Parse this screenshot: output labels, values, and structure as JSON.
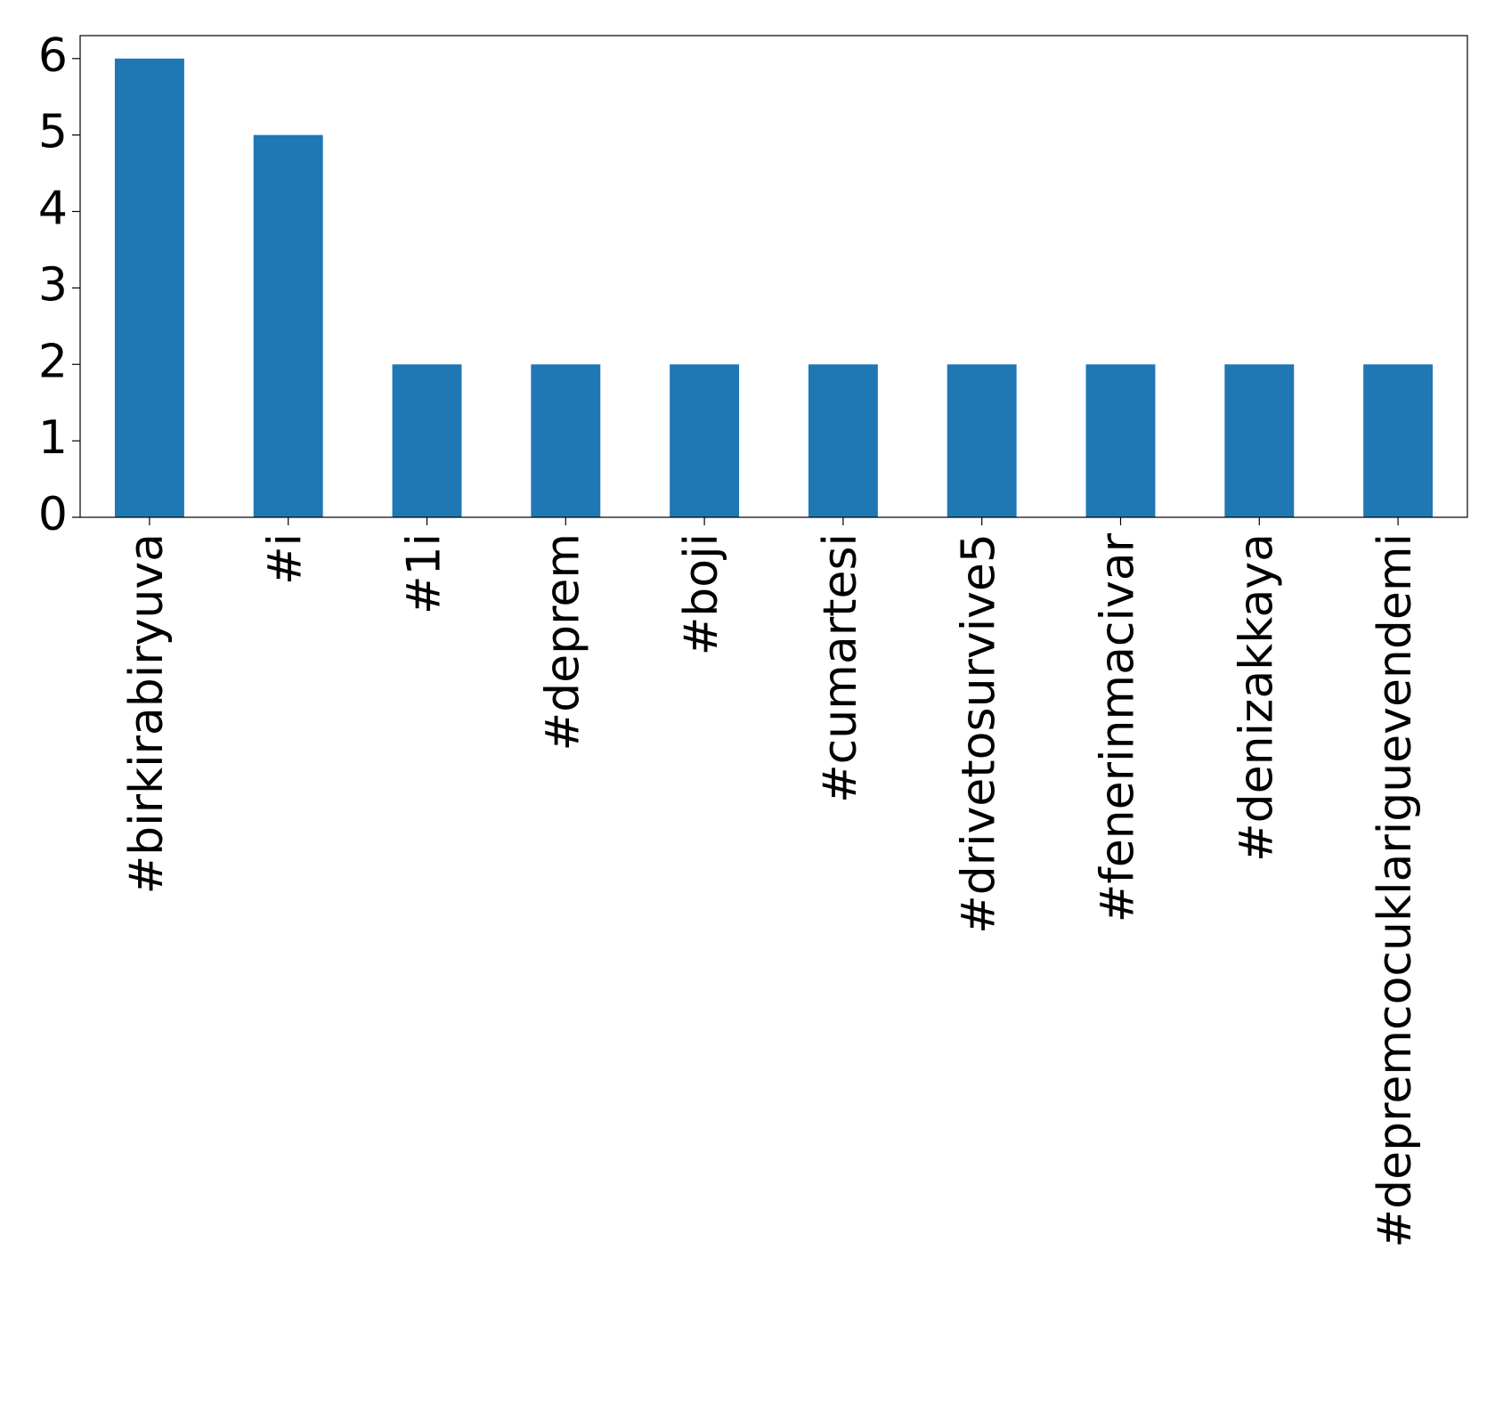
{
  "chart_data": {
    "type": "bar",
    "categories": [
      "#birkirabiryuva",
      "#i",
      "#1i",
      "#deprem",
      "#boji",
      "#cumartesi",
      "#drivetosurvive5",
      "#fenerinmacivar",
      "#denizakkaya",
      "#depremcocuklariguevendemi"
    ],
    "values": [
      6,
      5,
      2,
      2,
      2,
      2,
      2,
      2,
      2,
      2
    ],
    "color": "#1f77b4",
    "ylim": [
      0,
      6.3
    ],
    "yticks": [
      0,
      1,
      2,
      3,
      4,
      5,
      6
    ],
    "grid": false
  }
}
